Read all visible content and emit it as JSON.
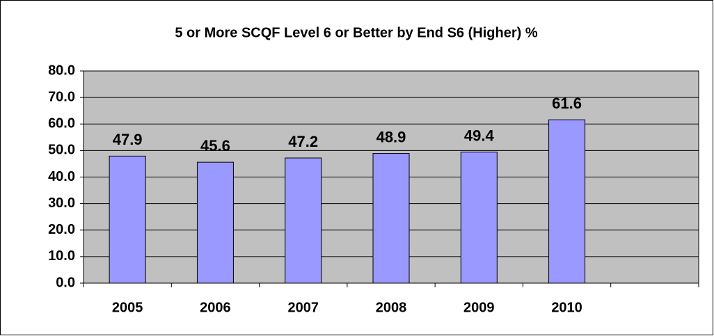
{
  "chart_data": {
    "type": "bar",
    "title": "5 or More SCQF Level 6 or Better by End S6 (Higher) %",
    "categories": [
      "2005",
      "2006",
      "2007",
      "2008",
      "2009",
      "2010",
      null
    ],
    "values": [
      47.9,
      45.6,
      47.2,
      48.9,
      49.4,
      61.6,
      null
    ],
    "color": "#9999ff",
    "ylim": [
      0,
      80
    ],
    "yticks": [
      {
        "value": 0,
        "label": "0.0"
      },
      {
        "value": 10,
        "label": "10.0"
      },
      {
        "value": 20,
        "label": "20.0"
      },
      {
        "value": 30,
        "label": "30.0"
      },
      {
        "value": 40,
        "label": "40.0"
      },
      {
        "value": 50,
        "label": "50.0"
      },
      {
        "value": 60,
        "label": "60.0"
      },
      {
        "value": 70,
        "label": "70.0"
      },
      {
        "value": 80,
        "label": "80.0"
      }
    ],
    "grid": true,
    "plot_background": "#c0c0c0"
  }
}
